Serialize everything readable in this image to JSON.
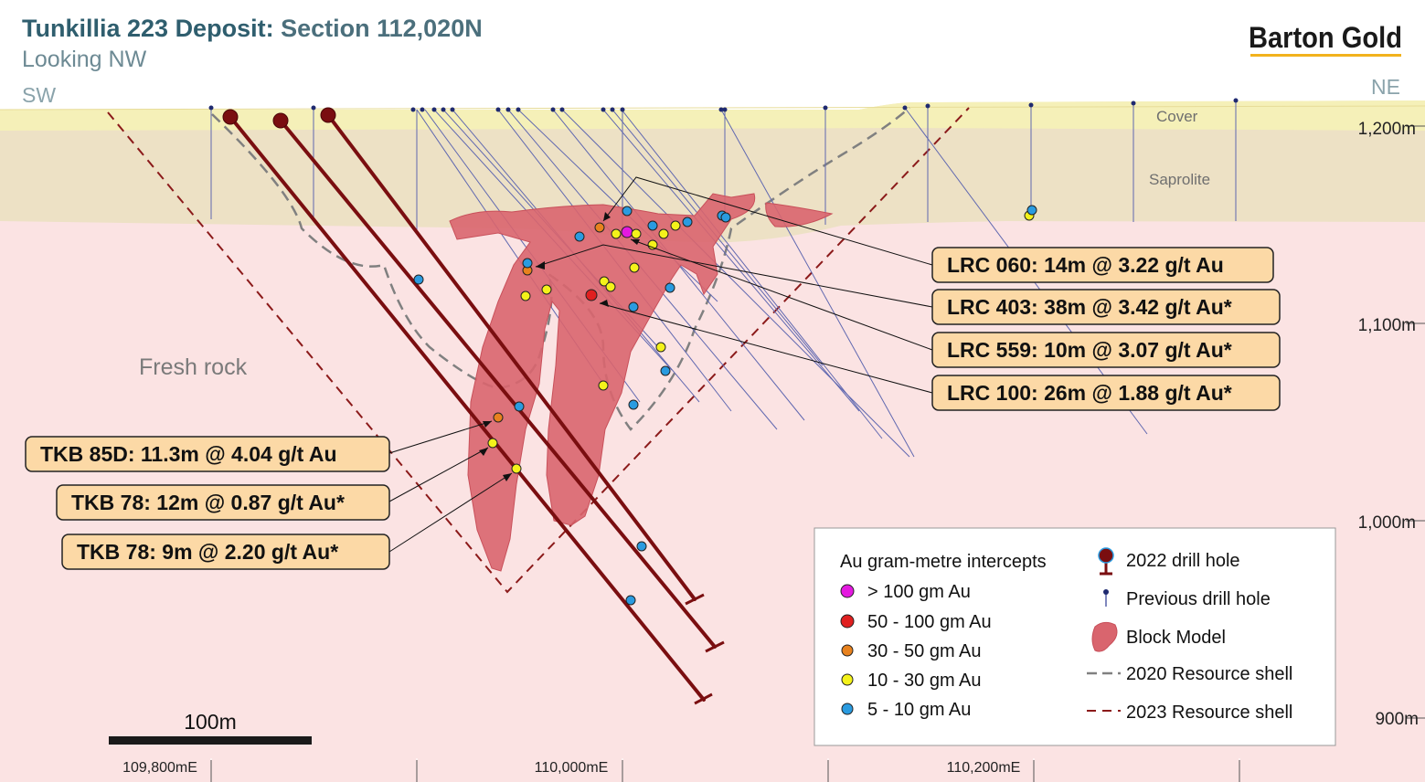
{
  "header": {
    "title_main": "Tunkillia 223 Deposit:",
    "title_section": " Section 112,020N",
    "subtitle": "Looking NW",
    "dir_left": "SW",
    "dir_right": "NE",
    "logo": "Barton Gold"
  },
  "layers": {
    "cover": "Cover",
    "saprolite": "Saprolite",
    "fresh_rock": "Fresh rock"
  },
  "elevations": [
    "1,200m",
    "1,100m",
    "1,000m",
    "900m"
  ],
  "eastings": [
    "109,800mE",
    "110,000mE",
    "110,200mE"
  ],
  "scale_bar": "100m",
  "callouts_right": [
    "LRC 060: 14m @ 3.22 g/t Au",
    "LRC 403: 38m @ 3.42 g/t Au*",
    "LRC 559: 10m @ 3.07 g/t Au*",
    "LRC 100: 26m @ 1.88 g/t Au*"
  ],
  "callouts_left": [
    "TKB 85D: 11.3m @ 4.04 g/t Au",
    "TKB 78: 12m @ 0.87 g/t Au*",
    "TKB 78: 9m @ 2.20 g/t Au*"
  ],
  "legend": {
    "intercepts_title": "Au gram-metre intercepts",
    "intercepts": [
      {
        "label": "> 100 gm Au",
        "color": "#e419e0"
      },
      {
        "label": "50 - 100 gm Au",
        "color": "#e02020"
      },
      {
        "label": "30 - 50 gm Au",
        "color": "#e8821e"
      },
      {
        "label": "10 - 30 gm Au",
        "color": "#f4f21a"
      },
      {
        "label": "5 - 10 gm Au",
        "color": "#2a9be0"
      }
    ],
    "symbols": [
      "2022 drill hole",
      "Previous drill hole",
      "Block Model",
      "2020 Resource shell",
      "2023 Resource shell"
    ]
  },
  "colors": {
    "cover": "#f5f0b8",
    "saprolite": "#ede1c5",
    "fresh_rock": "#fbe3e3",
    "block_model": "#d9656e",
    "drill_2022": "#7a0e10",
    "drill_previous": "#5560a8",
    "title": "#2f5e6e",
    "callout_fill": "#fcd9a6"
  }
}
